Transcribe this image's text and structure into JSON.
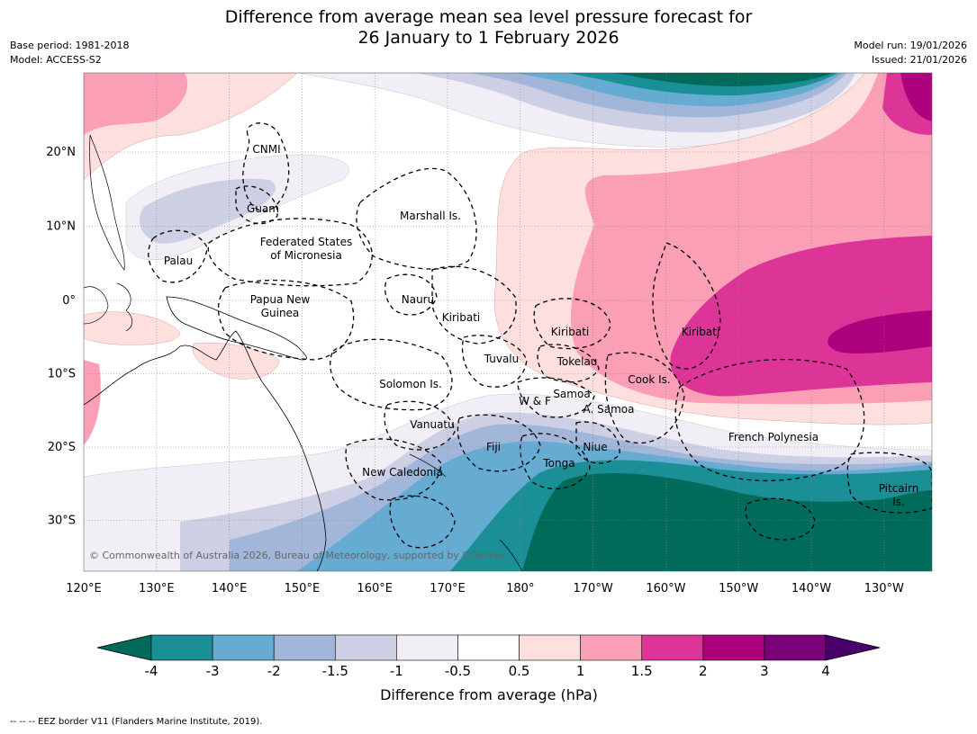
{
  "title": {
    "line1": "Difference from average mean sea level pressure forecast for",
    "line2": "26 January to 1 February 2026"
  },
  "meta": {
    "base_period": "Base period: 1981-2018",
    "model": "Model: ACCESS-S2",
    "model_run": "Model run: 19/01/2026",
    "issued": "Issued: 21/01/2026"
  },
  "map": {
    "lon_labels": [
      "120°E",
      "130°E",
      "140°E",
      "150°E",
      "160°E",
      "170°E",
      "180°",
      "170°W",
      "160°W",
      "150°W",
      "140°W",
      "130°W"
    ],
    "lat_labels": [
      "20°N",
      "10°N",
      "0°",
      "10°S",
      "20°S",
      "30°S"
    ],
    "region_labels": {
      "cnmi": "CNMI",
      "guam": "Guam",
      "marshall": "Marshall Is.",
      "fsm_line1": "Federated States",
      "fsm_line2": "of Micronesia",
      "palau": "Palau",
      "png_line1": "Papua New",
      "png_line2": "Guinea",
      "nauru": "Nauru",
      "kiribati_w": "Kiribati",
      "kiribati_c": "Kiribati",
      "kiribati_e": "Kiribati",
      "tuvalu": "Tuvalu",
      "tokelau": "Tokelau",
      "solomon": "Solomon Is.",
      "wf": "W & F",
      "samoa": "Samoa",
      "asamoa": "A. Samoa",
      "cook": "Cook Is.",
      "vanuatu": "Vanuatu",
      "fiji": "Fiji",
      "niue": "Niue",
      "tonga": "Tonga",
      "french_polynesia": "French Polynesia",
      "new_caledonia": "New Caledonia",
      "pitcairn_line1": "Pitcairn",
      "pitcairn_line2": "Is."
    },
    "copyright": "© Commonwealth of Australia 2026, Bureau of Meteorology, supported by COSPPac"
  },
  "colorbar": {
    "title": "Difference from average (hPa)",
    "tick_labels": [
      "-4",
      "-3",
      "-2",
      "-1.5",
      "-1",
      "-0.5",
      "0.5",
      "1",
      "1.5",
      "2",
      "3",
      "4"
    ],
    "colors": [
      "#006b5b",
      "#1b8f96",
      "#66abd2",
      "#a1b6d8",
      "#cdd0e5",
      "#f1eef5",
      "#ffffff",
      "#fde0dd",
      "#fa9fb5",
      "#dd3497",
      "#ae017e",
      "#7a0177",
      "#49006a"
    ]
  },
  "footnote": "--  --  -- EEZ border V11 (Flanders Marine Institute, 2019)."
}
